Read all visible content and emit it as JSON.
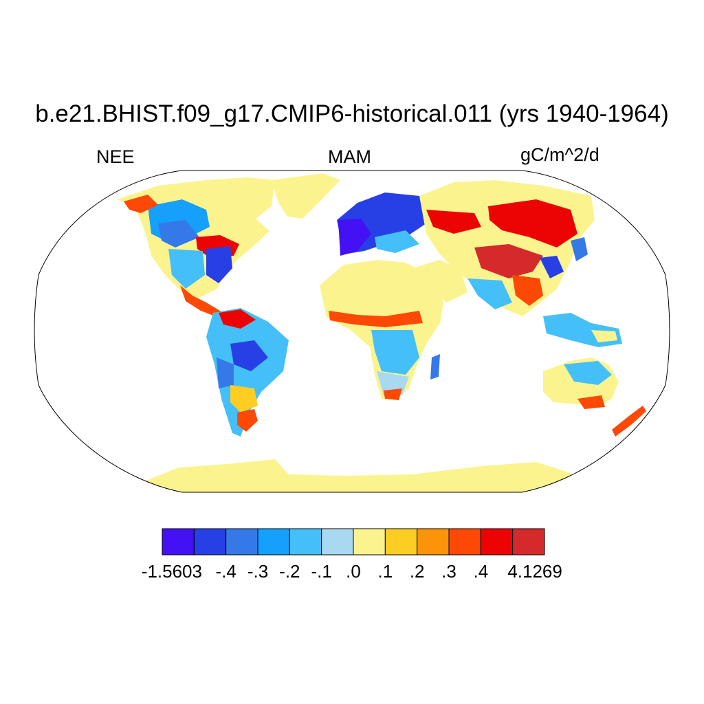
{
  "figure": {
    "title": "b.e21.BHIST.f09_g17.CMIP6-historical.011 (yrs 1940-1964)",
    "left_label": "NEE",
    "center_label": "MAM",
    "right_label": "gC/m^2/d"
  },
  "colorbar": {
    "colors": [
      "#4410f4",
      "#2740e6",
      "#3579e9",
      "#14a0fb",
      "#45bff7",
      "#a8d9f0",
      "#fbf48e",
      "#fdcd23",
      "#fb9408",
      "#fd4905",
      "#ec0404",
      "#d52a2c"
    ],
    "tick_labels": [
      "-1.5603",
      "-.4",
      "-.3",
      "-.2",
      "-.1",
      ".0",
      ".1",
      ".2",
      ".3",
      ".4",
      "4.1269"
    ]
  }
}
